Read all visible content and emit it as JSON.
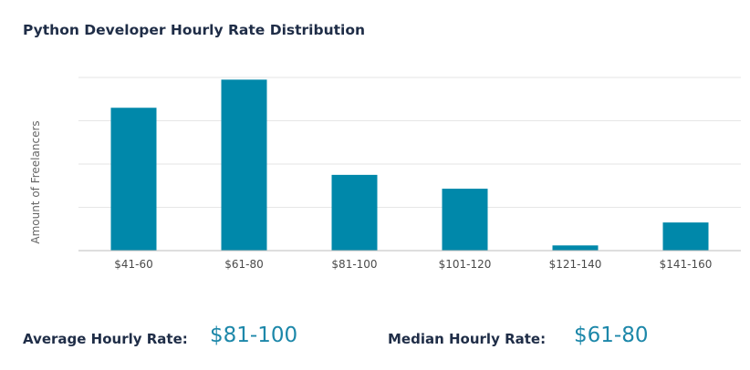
{
  "colors": {
    "bar": "#0088aa",
    "grid": "#e6e6e6",
    "axis": "#bcbcbc",
    "value": "#1c87a9"
  },
  "chart_data": {
    "type": "bar",
    "title": "Python Developer Hourly Rate Distribution",
    "xlabel": "",
    "ylabel": "Amount of Freelancers",
    "categories": [
      "$41-60",
      "$61-80",
      "$81-100",
      "$101-120",
      "$121-140",
      "$141-160"
    ],
    "values": [
      3.3,
      3.95,
      1.75,
      1.43,
      0.12,
      0.65
    ],
    "ylim": [
      0,
      4
    ],
    "grid": true
  },
  "stats": {
    "average_label": "Average Hourly Rate:",
    "average_value": "$81-100",
    "median_label": "Median Hourly Rate:",
    "median_value": "$61-80"
  }
}
